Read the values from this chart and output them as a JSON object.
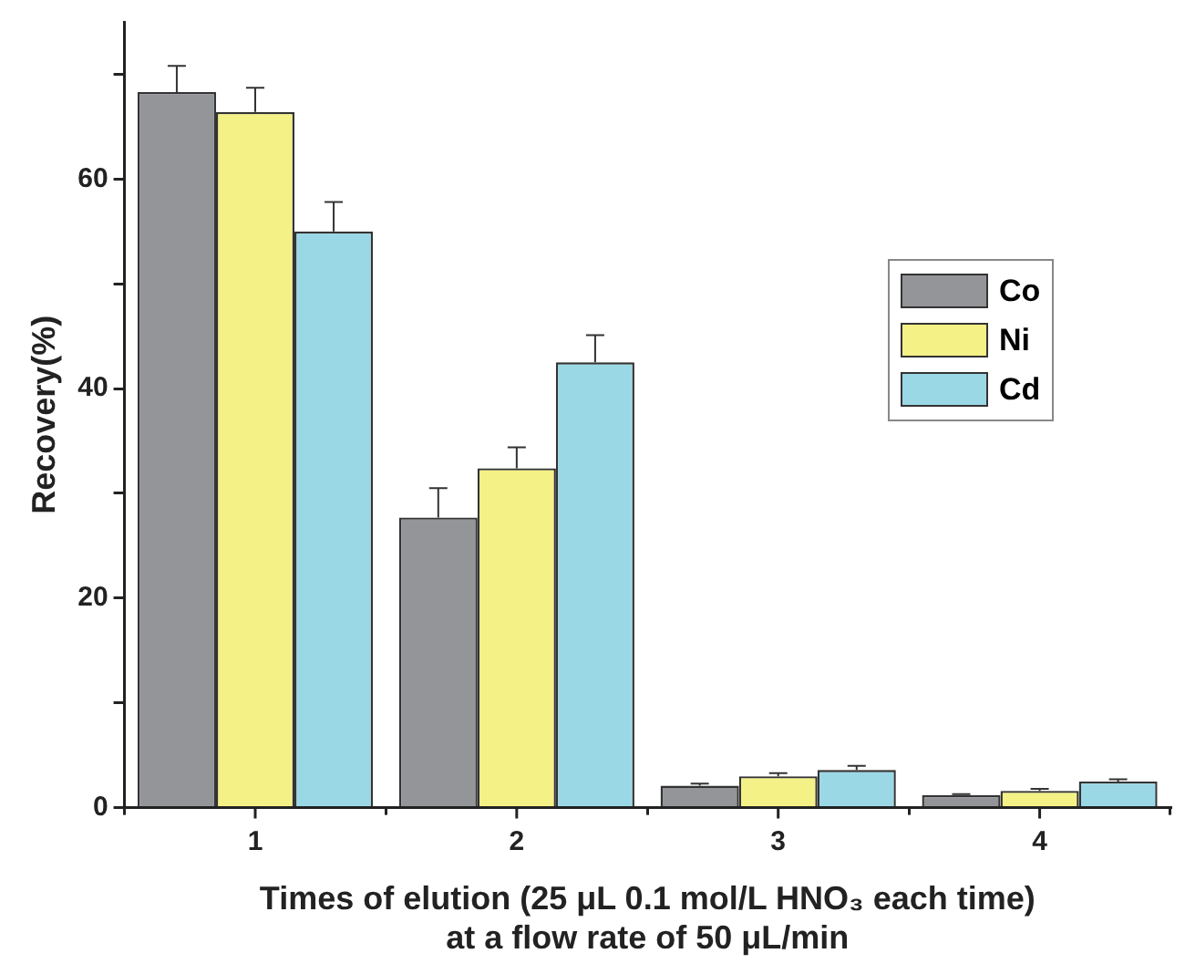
{
  "chart_data": {
    "type": "bar",
    "xlabel": "Times of elution (25 μL 0.1 mol/L HNO₃ each time)\nat a flow rate of 50 μL/min",
    "ylabel": "Recovery(%)",
    "categories": [
      "1",
      "2",
      "3",
      "4"
    ],
    "series": [
      {
        "name": "Co",
        "color": "#939598",
        "values": [
          68.3,
          27.7,
          2.1,
          1.2
        ],
        "errors": [
          2.5,
          2.8,
          0.2,
          0.1
        ]
      },
      {
        "name": "Ni",
        "color": "#f4f186",
        "values": [
          66.4,
          32.4,
          3.0,
          1.6
        ],
        "errors": [
          2.3,
          2.0,
          0.3,
          0.2
        ]
      },
      {
        "name": "Cd",
        "color": "#9ad8e6",
        "values": [
          55.0,
          42.5,
          3.6,
          2.5
        ],
        "errors": [
          2.8,
          2.6,
          0.4,
          0.2
        ]
      }
    ],
    "ylim": [
      0,
      75
    ],
    "yticks": [
      0,
      {
        "value": 10,
        "label": null
      },
      20,
      {
        "value": 30,
        "label": null
      },
      40,
      {
        "value": 50,
        "label": null
      },
      60,
      {
        "value": 70,
        "label": null
      }
    ],
    "grid": false,
    "legend": "right"
  }
}
